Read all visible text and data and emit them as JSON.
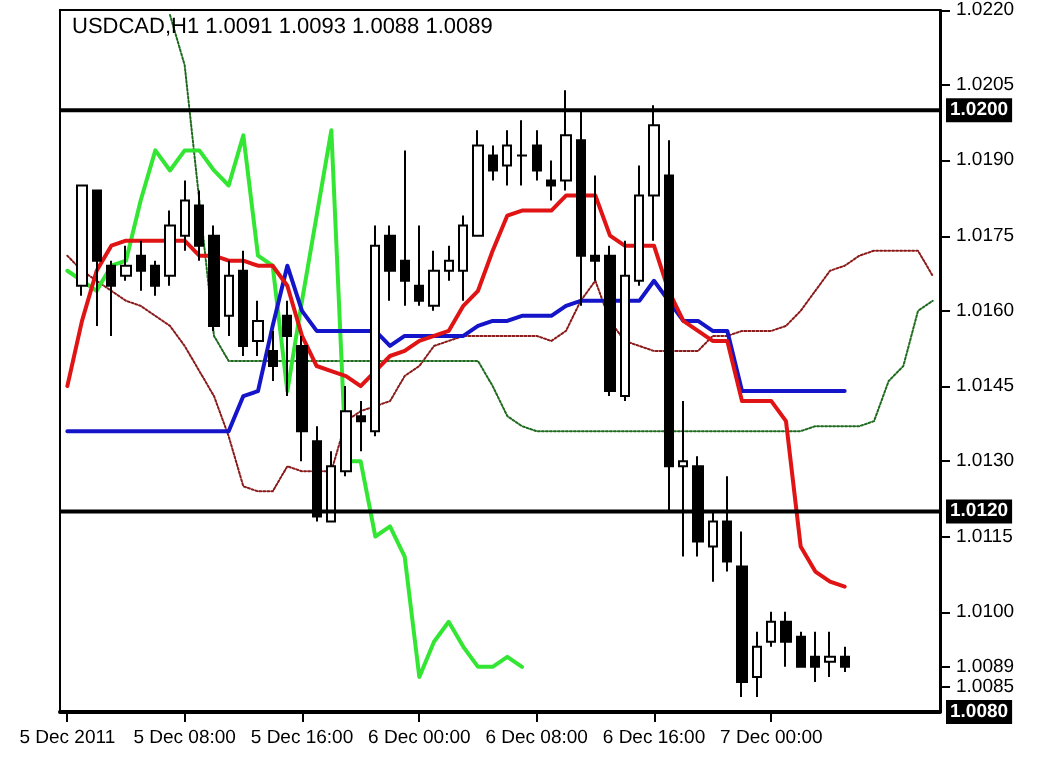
{
  "chart_data": {
    "type": "candlestick",
    "title": "USDCAD,H1 1.0091 1.0093 1.0088 1.0089",
    "categories": [
      "5 Dec 2011",
      null,
      null,
      null,
      null,
      null,
      null,
      null,
      "5 Dec 08:00",
      null,
      null,
      null,
      null,
      null,
      null,
      null,
      "5 Dec 16:00",
      null,
      null,
      null,
      null,
      null,
      null,
      null,
      "6 Dec 00:00",
      null,
      null,
      null,
      null,
      null,
      null,
      null,
      "6 Dec 08:00",
      null,
      null,
      null,
      null,
      null,
      null,
      null,
      "6 Dec 16:00",
      null,
      null,
      null,
      null,
      null,
      null,
      null,
      "7 Dec 00:00",
      null,
      null,
      null,
      null,
      null,
      null,
      null,
      null,
      null,
      null,
      null
    ],
    "ohlc": [
      null,
      [
        1.0165,
        1.0185,
        1.0163,
        1.0185
      ],
      [
        1.0184,
        1.0184,
        1.0157,
        1.017
      ],
      [
        1.0169,
        1.017,
        1.0155,
        1.0165
      ],
      [
        1.0167,
        1.0173,
        1.0166,
        1.0169
      ],
      [
        1.0171,
        1.0174,
        1.0164,
        1.0168
      ],
      [
        1.0169,
        1.017,
        1.0163,
        1.0165
      ],
      [
        1.0167,
        1.018,
        1.0165,
        1.0177
      ],
      [
        1.0175,
        1.0186,
        1.0172,
        1.0182
      ],
      [
        1.0181,
        1.0184,
        1.017,
        1.0173
      ],
      [
        1.0175,
        1.0177,
        1.0156,
        1.0157
      ],
      [
        1.0159,
        1.017,
        1.0155,
        1.0167
      ],
      [
        1.0168,
        1.0172,
        1.0151,
        1.0153
      ],
      [
        1.0154,
        1.0162,
        1.0151,
        1.0158
      ],
      [
        1.0152,
        1.0156,
        1.0146,
        1.0149
      ],
      [
        1.0159,
        1.0162,
        1.0143,
        1.0155
      ],
      [
        1.0153,
        1.0155,
        1.013,
        1.0136
      ],
      [
        1.0134,
        1.0137,
        1.0118,
        1.0119
      ],
      [
        1.0118,
        1.0132,
        1.0118,
        1.0129
      ],
      [
        1.0128,
        1.0145,
        1.0127,
        1.014
      ],
      [
        1.0139,
        1.0142,
        1.0132,
        1.0138
      ],
      [
        1.0136,
        1.0177,
        1.0135,
        1.0173
      ],
      [
        1.0175,
        1.0177,
        1.0162,
        1.0168
      ],
      [
        1.017,
        1.0192,
        1.0161,
        1.0166
      ],
      [
        1.0165,
        1.0177,
        1.0161,
        1.0162
      ],
      [
        1.0161,
        1.0172,
        1.016,
        1.0168
      ],
      [
        1.0168,
        1.0173,
        1.0166,
        1.017
      ],
      [
        1.0168,
        1.0179,
        1.0162,
        1.0177
      ],
      [
        1.0175,
        1.0196,
        1.0175,
        1.0193
      ],
      [
        1.0191,
        1.0193,
        1.0186,
        1.0188
      ],
      [
        1.0189,
        1.0196,
        1.0185,
        1.0193
      ],
      [
        1.0191,
        1.0198,
        1.0185,
        1.0191
      ],
      [
        1.0193,
        1.0196,
        1.0186,
        1.0188
      ],
      [
        1.0186,
        1.019,
        1.0182,
        1.0185
      ],
      [
        1.0186,
        1.0204,
        1.0184,
        1.0195
      ],
      [
        1.0194,
        1.02,
        1.0161,
        1.0171
      ],
      [
        1.0171,
        1.0187,
        1.0166,
        1.017
      ],
      [
        1.0171,
        1.0173,
        1.0143,
        1.0144
      ],
      [
        1.0143,
        1.0174,
        1.0142,
        1.0167
      ],
      [
        1.0166,
        1.0189,
        1.0165,
        1.0183
      ],
      [
        1.0183,
        1.0201,
        1.0174,
        1.0197
      ],
      [
        1.0187,
        1.0194,
        1.012,
        1.0129
      ],
      [
        1.0129,
        1.0142,
        1.0111,
        1.013
      ],
      [
        1.0129,
        1.0131,
        1.0111,
        1.0114
      ],
      [
        1.0113,
        1.012,
        1.0106,
        1.0118
      ],
      [
        1.0118,
        1.0127,
        1.0108,
        1.011
      ],
      [
        1.0109,
        1.0116,
        1.0083,
        1.0086
      ],
      [
        1.0087,
        1.0096,
        1.0083,
        1.0093
      ],
      [
        1.0094,
        1.01,
        1.0093,
        1.0098
      ],
      [
        1.0098,
        1.01,
        1.0089,
        1.0094
      ],
      [
        1.0095,
        1.0096,
        1.0089,
        1.0089
      ],
      [
        1.0091,
        1.0096,
        1.0086,
        1.0089
      ],
      [
        1.009,
        1.0096,
        1.0087,
        1.0091
      ],
      [
        1.0091,
        1.0093,
        1.0088,
        1.0089
      ],
      null,
      null,
      null,
      null,
      null,
      null
    ],
    "series": [
      {
        "type": "line",
        "color": "#8b1a1a",
        "line_style": "dotted",
        "values": [
          1.0171,
          1.0168,
          1.0166,
          1.0164,
          1.0162,
          1.0161,
          1.0159,
          1.0157,
          1.0153,
          1.0148,
          1.0143,
          1.0135,
          1.0125,
          1.0124,
          1.0124,
          1.0129,
          1.0128,
          1.0128,
          1.0128,
          1.0138,
          1.014,
          1.0141,
          1.0142,
          1.0147,
          1.0149,
          1.0153,
          1.0154,
          1.0155,
          1.0155,
          1.0155,
          1.0155,
          1.0155,
          1.0155,
          1.0154,
          1.0156,
          1.0162,
          1.0166,
          1.0158,
          1.0154,
          1.0153,
          1.0152,
          1.0152,
          1.0152,
          1.0152,
          1.0155,
          1.0155,
          1.0156,
          1.0156,
          1.0156,
          1.0157,
          1.016,
          1.0164,
          1.0168,
          1.0169,
          1.0171,
          1.0172,
          1.0172,
          1.0172,
          1.0172,
          1.0167
        ]
      },
      {
        "type": "line",
        "color": "#1e6b1e",
        "line_style": "dotted",
        "values": [
          null,
          null,
          null,
          null,
          null,
          null,
          null,
          1.0219,
          1.0209,
          1.0182,
          1.0155,
          1.015,
          1.015,
          1.015,
          1.015,
          1.015,
          1.015,
          1.015,
          1.015,
          1.015,
          1.015,
          1.015,
          1.015,
          1.015,
          1.015,
          1.015,
          1.015,
          1.015,
          1.015,
          1.0145,
          1.0139,
          1.0137,
          1.0136,
          1.0136,
          1.0136,
          1.0136,
          1.0136,
          1.0136,
          1.0136,
          1.0136,
          1.0136,
          1.0136,
          1.0136,
          1.0136,
          1.0136,
          1.0136,
          1.0136,
          1.0136,
          1.0136,
          1.0136,
          1.0136,
          1.0137,
          1.0137,
          1.0137,
          1.0137,
          1.0138,
          1.0146,
          1.0149,
          1.016,
          1.0162
        ]
      },
      {
        "type": "line",
        "color": "#33e633",
        "line_style": "solid",
        "values": [
          1.0168,
          1.0166,
          1.0164,
          1.0169,
          1.017,
          1.0182,
          1.0192,
          1.0188,
          1.0192,
          1.0192,
          1.0188,
          1.0185,
          1.0195,
          1.0171,
          1.0169,
          1.0144,
          1.0162,
          1.0179,
          1.0196,
          1.013,
          1.013,
          1.0115,
          1.0117,
          1.0111,
          1.0087,
          1.0094,
          1.0098,
          1.0093,
          1.0089,
          1.0089,
          1.0091,
          1.0089,
          null,
          null,
          null,
          null,
          null,
          null,
          null,
          null,
          null,
          null,
          null,
          null,
          null,
          null,
          null,
          null,
          null,
          null,
          null,
          null,
          null,
          null,
          null,
          null,
          null,
          null,
          null,
          null
        ]
      },
      {
        "type": "line",
        "color": "#1414c8",
        "line_style": "solid",
        "values": [
          1.0136,
          1.0136,
          1.0136,
          1.0136,
          1.0136,
          1.0136,
          1.0136,
          1.0136,
          1.0136,
          1.0136,
          1.0136,
          1.0136,
          1.0143,
          1.0144,
          1.0157,
          1.0169,
          1.016,
          1.0156,
          1.0156,
          1.0156,
          1.0156,
          1.0156,
          1.0153,
          1.0155,
          1.0155,
          1.0155,
          1.0155,
          1.0155,
          1.0157,
          1.0158,
          1.0158,
          1.0159,
          1.0159,
          1.0159,
          1.0161,
          1.0162,
          1.0162,
          1.0162,
          1.0162,
          1.0162,
          1.0166,
          1.0162,
          1.0158,
          1.0158,
          1.0156,
          1.0156,
          1.0144,
          1.0144,
          1.0144,
          1.0144,
          1.0144,
          1.0144,
          1.0144,
          1.0144,
          null,
          null,
          null,
          null,
          null,
          null
        ]
      },
      {
        "type": "line",
        "color": "#e01414",
        "line_style": "solid",
        "values": [
          1.0145,
          1.0158,
          1.0168,
          1.0173,
          1.0174,
          1.0174,
          1.0174,
          1.0174,
          1.0174,
          1.0171,
          1.0171,
          1.017,
          1.017,
          1.0169,
          1.0169,
          1.0165,
          1.0155,
          1.0149,
          1.0148,
          1.0147,
          1.0145,
          1.0148,
          1.0151,
          1.0152,
          1.0154,
          1.0155,
          1.0156,
          1.0161,
          1.0164,
          1.0172,
          1.0179,
          1.018,
          1.018,
          1.018,
          1.0183,
          1.0183,
          1.0183,
          1.0175,
          1.0173,
          1.0173,
          1.0173,
          1.0164,
          1.0158,
          1.0156,
          1.0154,
          1.0154,
          1.0142,
          1.0142,
          1.0142,
          1.0138,
          1.0113,
          1.0108,
          1.0106,
          1.0105,
          null,
          null,
          null,
          null,
          null,
          null
        ]
      }
    ],
    "ref_lines": [
      {
        "axis": "y",
        "value": 1.02,
        "label": "1.0200",
        "color": "#000000"
      },
      {
        "axis": "y",
        "value": 1.012,
        "label": "1.0120",
        "color": "#000000"
      },
      {
        "axis": "y",
        "value": 1.008,
        "label": "1.0080",
        "color": "#000000"
      }
    ],
    "ylim": [
      1.008,
      1.022
    ],
    "yticks": [
      {
        "value": 1.0085,
        "label": "1.0085"
      },
      {
        "value": 1.0089,
        "label": "1.0089"
      },
      {
        "value": 1.01,
        "label": "1.0100"
      },
      {
        "value": 1.0115,
        "label": "1.0115"
      },
      {
        "value": 1.013,
        "label": "1.0130"
      },
      {
        "value": 1.0145,
        "label": "1.0145"
      },
      {
        "value": 1.016,
        "label": "1.0160"
      },
      {
        "value": 1.0175,
        "label": "1.0175"
      },
      {
        "value": 1.019,
        "label": "1.0190"
      },
      {
        "value": 1.0205,
        "label": "1.0205"
      },
      {
        "value": 1.022,
        "label": "1.0220"
      }
    ],
    "grid": false,
    "marker": "none"
  }
}
